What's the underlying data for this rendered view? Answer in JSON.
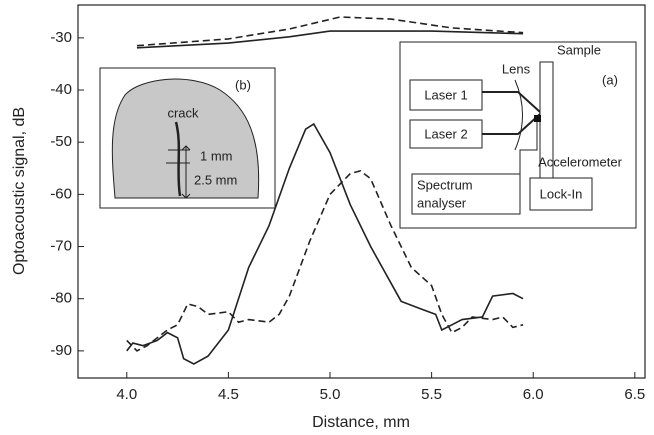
{
  "chart_data": {
    "type": "line",
    "xlabel": "Distance, mm",
    "ylabel": "Optoacoustic signal, dB",
    "xlim": [
      3.76,
      6.55
    ],
    "ylim": [
      -95.2,
      -23.7
    ],
    "xticks": [
      {
        "value": 4,
        "label": "4.0"
      },
      4.5,
      {
        "value": 5,
        "label": "5.0"
      },
      5.5,
      {
        "value": 6,
        "label": "6.0"
      },
      6.5
    ],
    "yticks": [
      -30,
      -40,
      -50,
      -60,
      -70,
      -80,
      -90
    ],
    "series": [
      {
        "color": "#222",
        "dashed": false,
        "x": [
          4.05,
          4.5,
          4.8,
          5.0,
          5.5,
          5.95
        ],
        "values": [
          -31.9,
          -31.0,
          -29.8,
          -28.7,
          -28.7,
          -29.2
        ]
      },
      {
        "color": "#222",
        "dashed": true,
        "x": [
          4.05,
          4.5,
          4.8,
          5.05,
          5.3,
          5.6,
          5.95
        ],
        "values": [
          -31.5,
          -30.2,
          -28.3,
          -26.0,
          -26.4,
          -28.1,
          -29.0
        ]
      },
      {
        "color": "#222",
        "dashed": false,
        "x": [
          4.0,
          4.03,
          4.08,
          4.15,
          4.2,
          4.25,
          4.28,
          4.33,
          4.4,
          4.5,
          4.6,
          4.7,
          4.8,
          4.88,
          4.92,
          5.0,
          5.1,
          5.2,
          5.3,
          5.35,
          5.45,
          5.52,
          5.55,
          5.6,
          5.65,
          5.75,
          5.8,
          5.9,
          5.95
        ],
        "values": [
          -90,
          -88.5,
          -89,
          -88,
          -86.5,
          -87.5,
          -91.5,
          -92.5,
          -91,
          -86,
          -74,
          -66,
          -55,
          -47.5,
          -46.5,
          -52,
          -62,
          -70,
          -77,
          -80.5,
          -82,
          -83,
          -86,
          -85,
          -84,
          -83.5,
          -79.5,
          -79,
          -80
        ]
      },
      {
        "color": "#222",
        "dashed": true,
        "x": [
          4.0,
          4.05,
          4.1,
          4.2,
          4.25,
          4.3,
          4.35,
          4.4,
          4.5,
          4.55,
          4.6,
          4.7,
          4.75,
          4.8,
          4.9,
          5.0,
          5.1,
          5.15,
          5.2,
          5.3,
          5.4,
          5.5,
          5.55,
          5.6,
          5.65,
          5.7,
          5.8,
          5.85,
          5.9,
          5.95
        ],
        "values": [
          -88,
          -90,
          -89,
          -86,
          -85,
          -81,
          -81.5,
          -83,
          -82.5,
          -84.5,
          -84,
          -84.5,
          -83,
          -79.5,
          -69,
          -60,
          -56,
          -55.5,
          -57,
          -66,
          -74,
          -77.5,
          -83,
          -86.5,
          -85.5,
          -83.5,
          -84,
          -83.5,
          -85.5,
          -85
        ]
      }
    ]
  },
  "inset_a": {
    "tag": "(a)",
    "laser1": "Laser 1",
    "laser2": "Laser 2",
    "lens": "Lens",
    "sample": "Sample",
    "accelerometer": "Accelerometer",
    "spectrum_analyser": [
      "Spectrum",
      "analyser"
    ],
    "lock_in": "Lock-In"
  },
  "inset_b": {
    "tag": "(b)",
    "crack": "crack",
    "gap": "1 mm",
    "depth": "2.5 mm"
  }
}
